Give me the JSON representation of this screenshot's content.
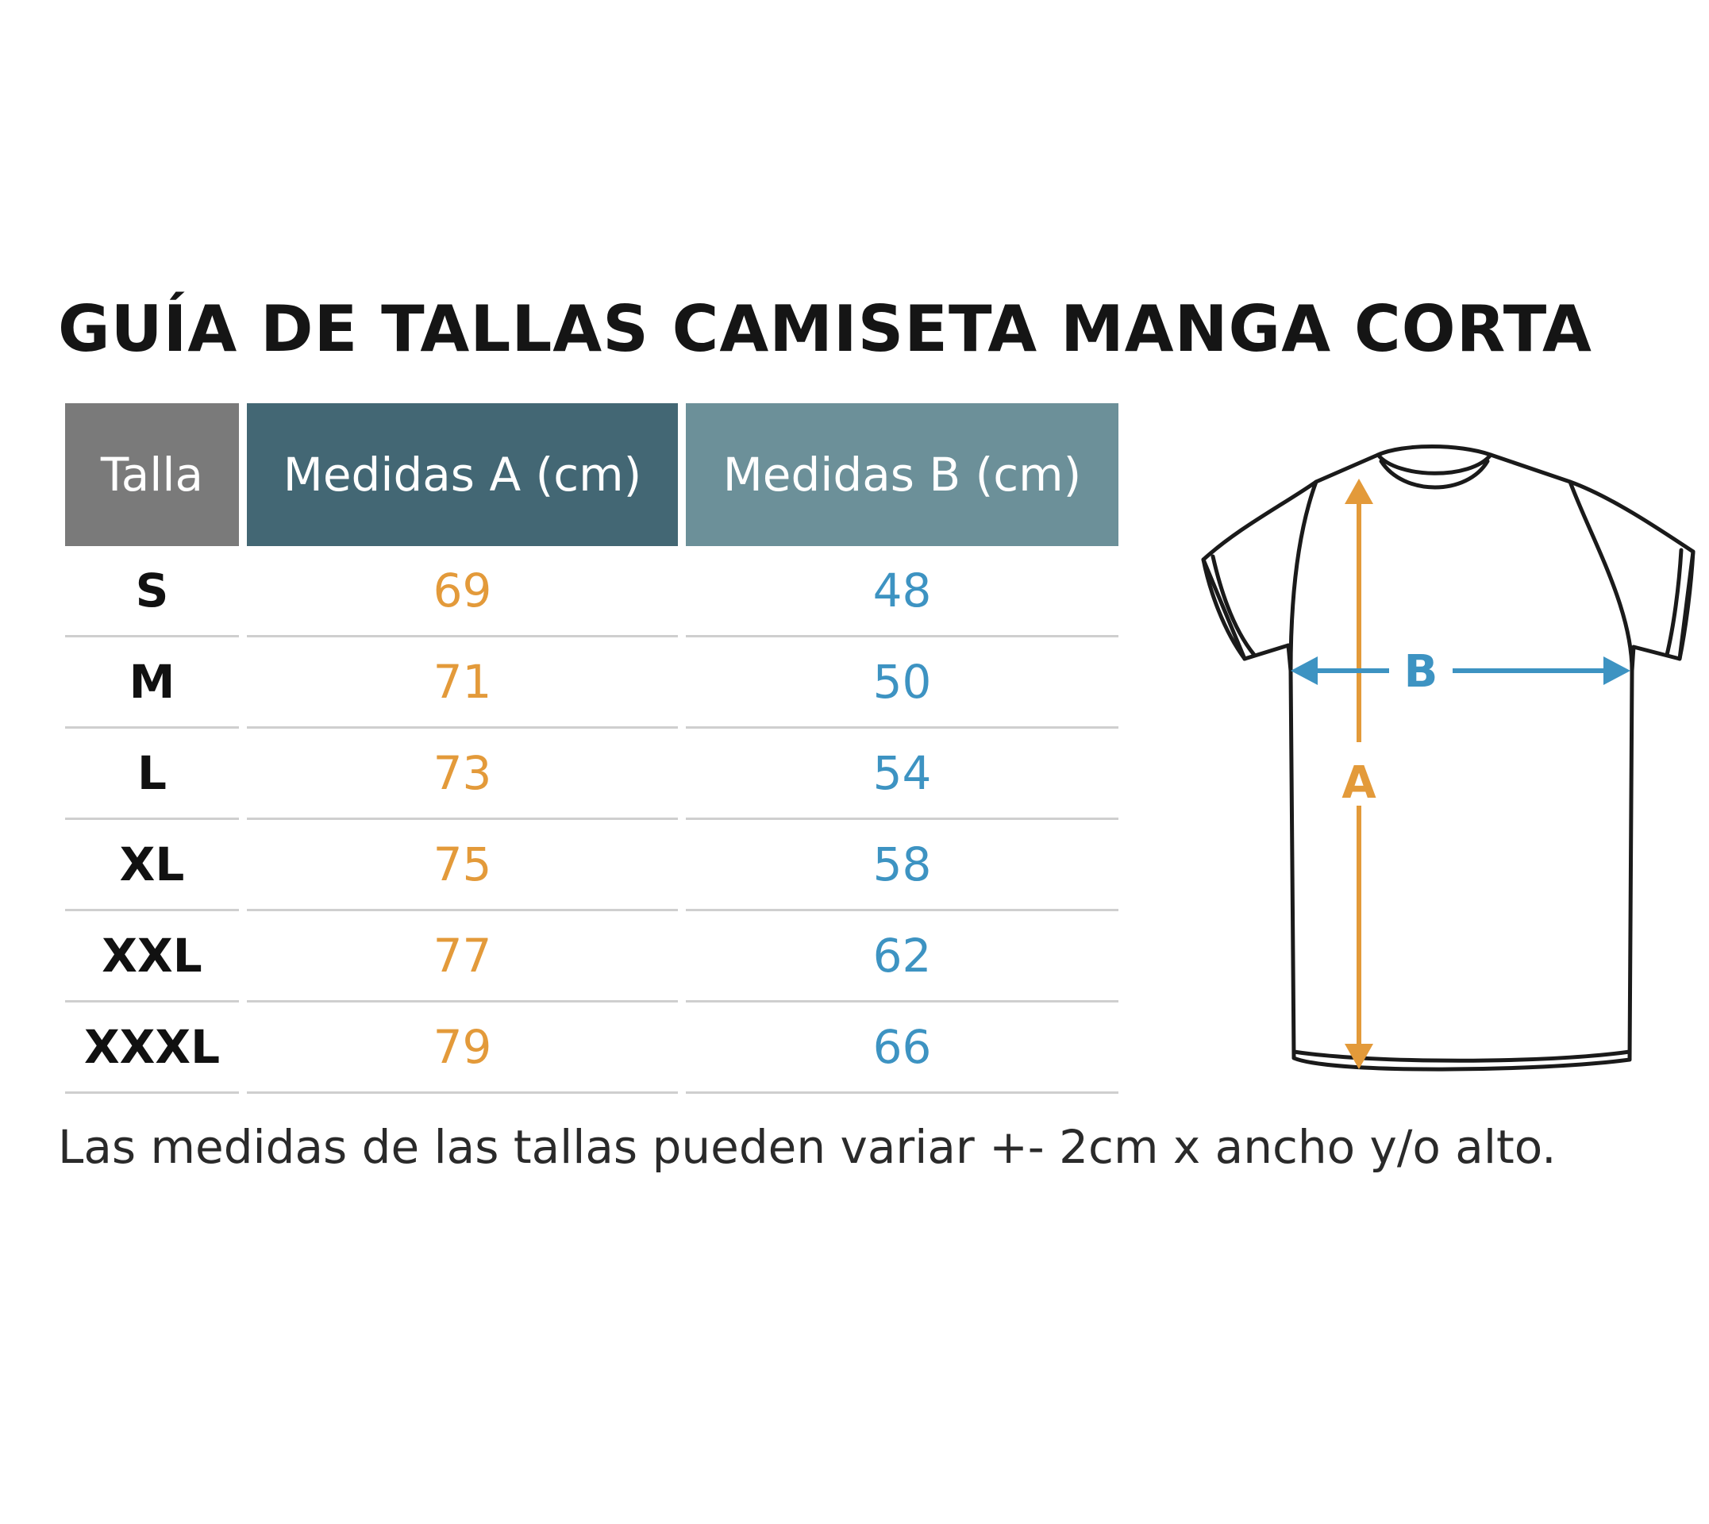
{
  "title": "GUÍA DE TALLAS CAMISETA MANGA CORTA",
  "table": {
    "headers": {
      "size": "Talla",
      "a": "Medidas A (cm)",
      "b": "Medidas B (cm)"
    },
    "rows": [
      {
        "size": "S",
        "a": "69",
        "b": "48"
      },
      {
        "size": "M",
        "a": "71",
        "b": "50"
      },
      {
        "size": "L",
        "a": "73",
        "b": "54"
      },
      {
        "size": "XL",
        "a": "75",
        "b": "58"
      },
      {
        "size": "XXL",
        "a": "77",
        "b": "62"
      },
      {
        "size": "XXXL",
        "a": "79",
        "b": "66"
      }
    ]
  },
  "note": "Las medidas de las tallas pueden variar +- 2cm x ancho y/o alto.",
  "diagram": {
    "label_a": "A",
    "label_b": "B"
  },
  "colors": {
    "header_talla": "#7a7a7a",
    "header_a": "#436774",
    "header_b": "#6c9099",
    "value_a": "#e39a3a",
    "value_b": "#3d93c2"
  }
}
